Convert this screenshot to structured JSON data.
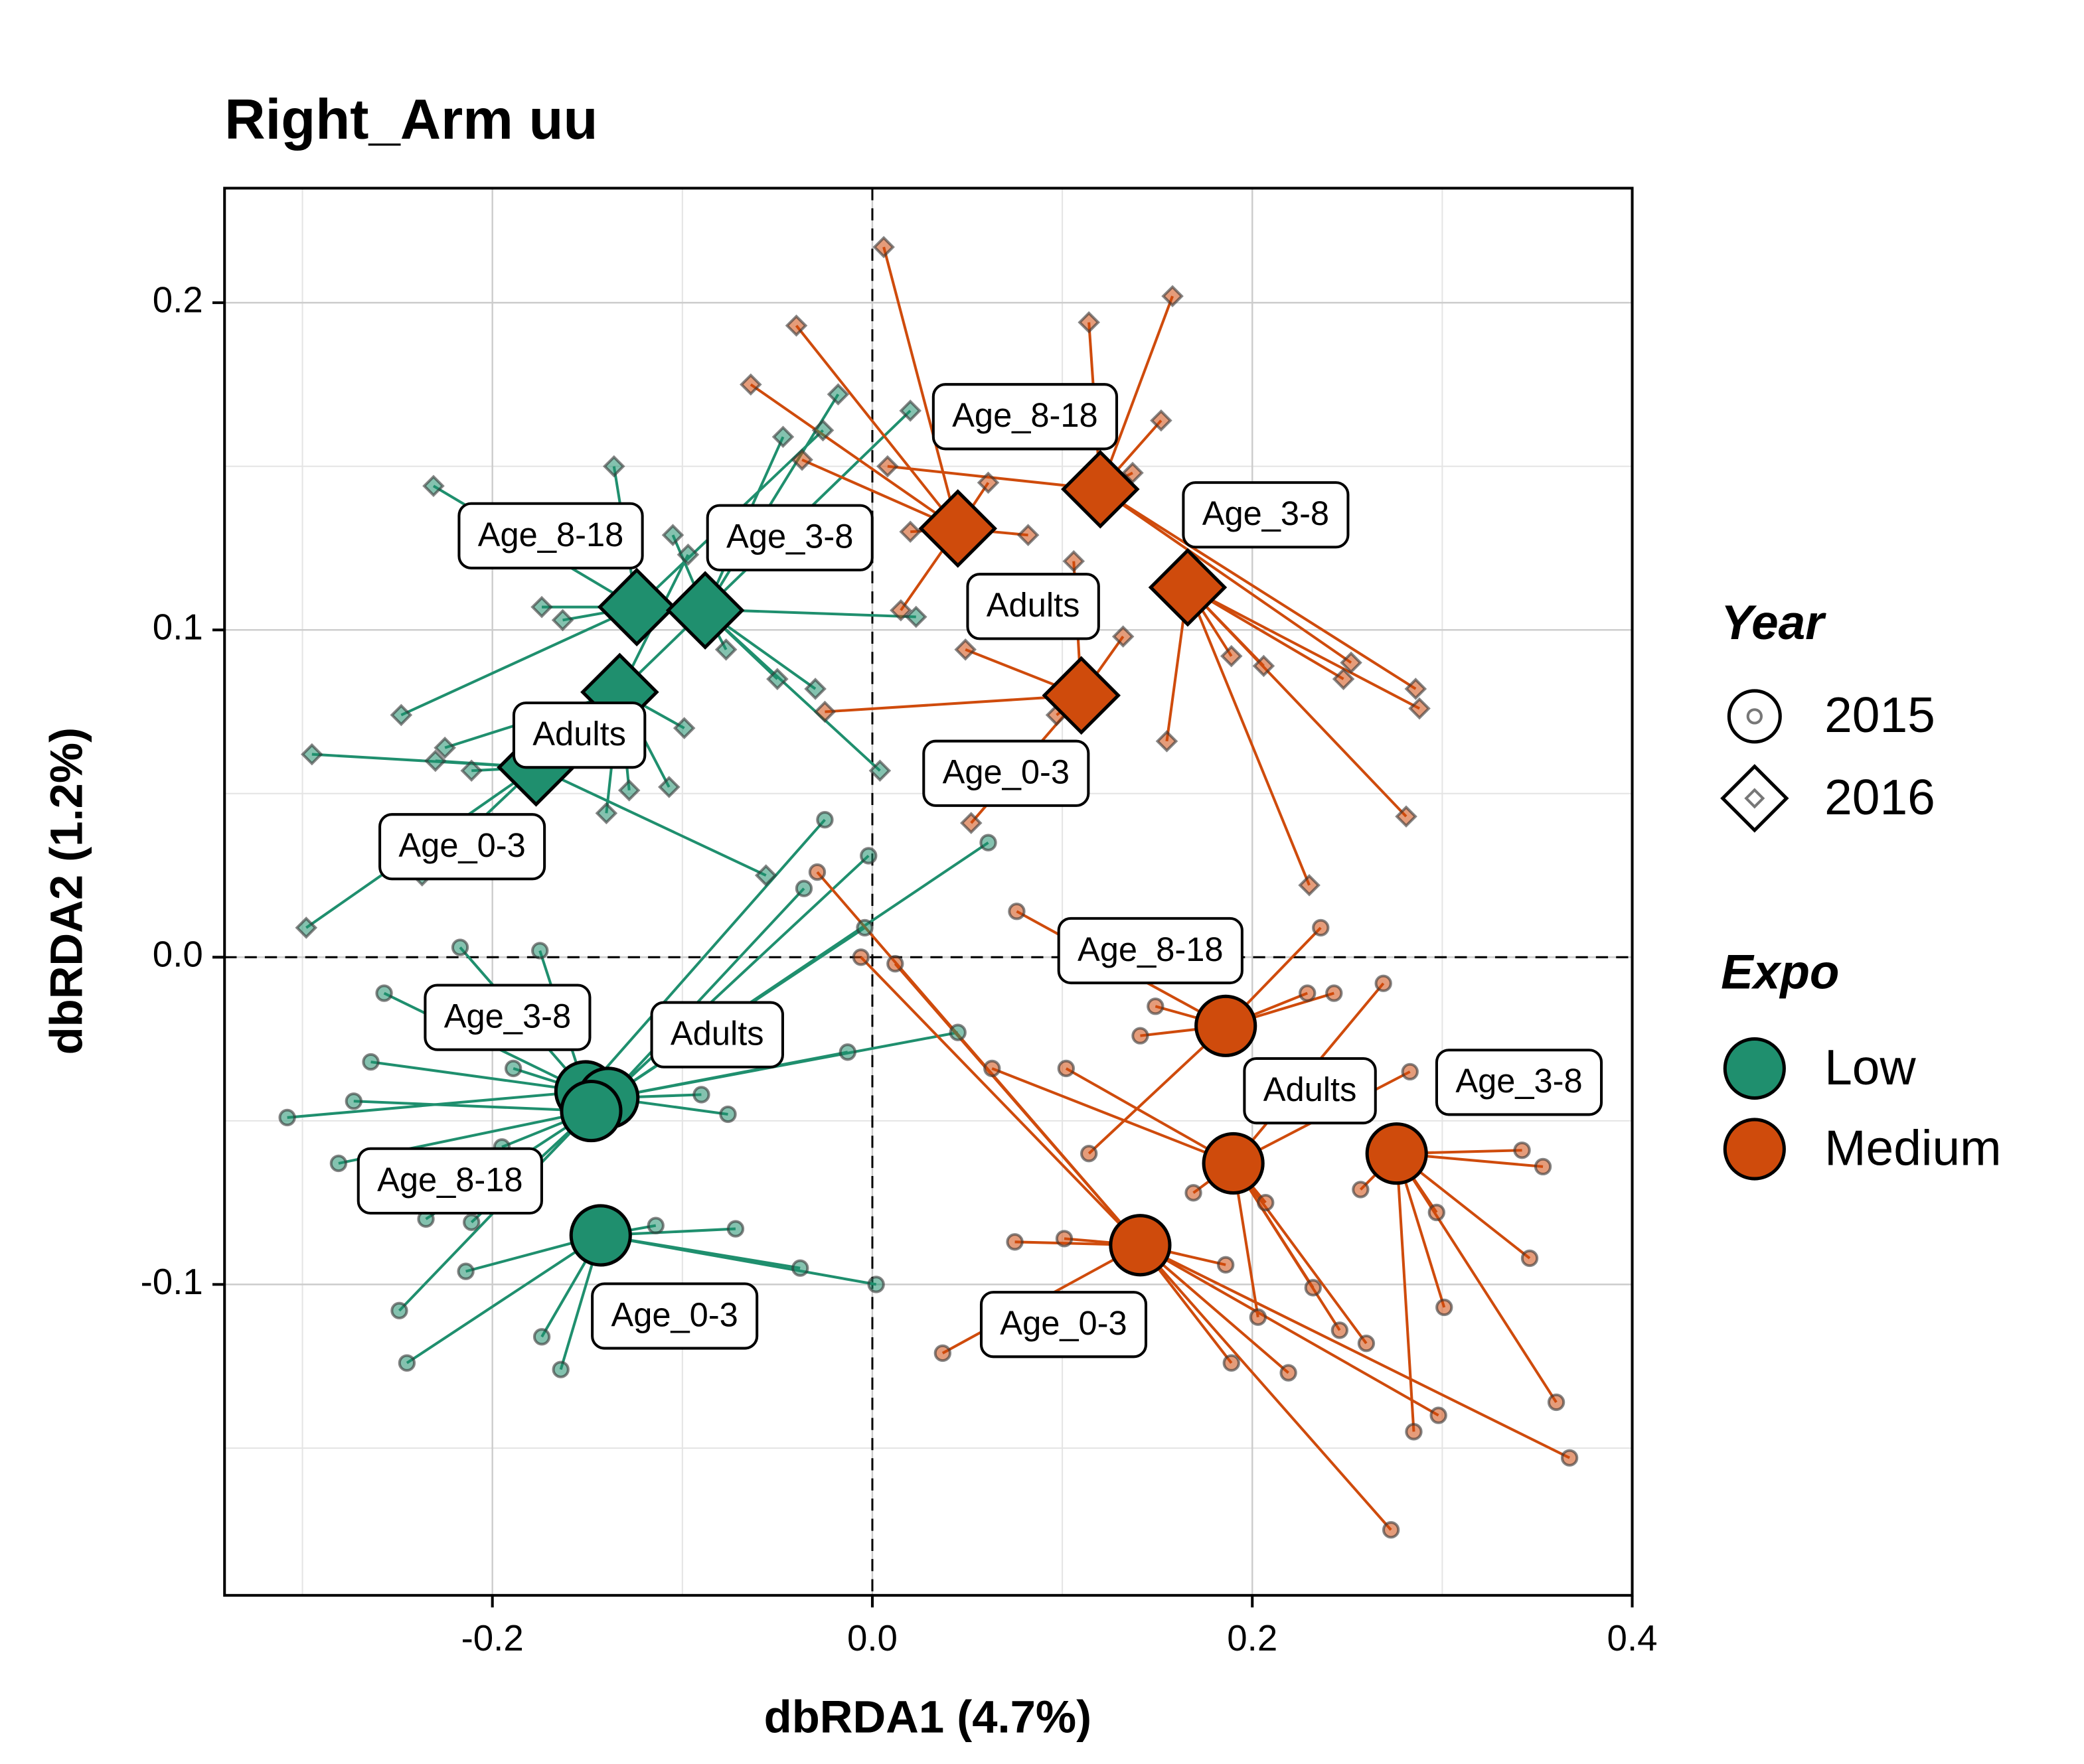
{
  "chart_data": {
    "type": "scatter",
    "title": "Right_Arm uu",
    "xlabel": "dbRDA1 (4.7%)",
    "ylabel": "dbRDA2 (1.2%)",
    "xlim": [
      -0.341,
      0.4
    ],
    "ylim": [
      -0.195,
      0.235
    ],
    "xticks": [
      -0.2,
      {
        "value": 0,
        "label": "0.0"
      },
      0.2,
      0.4
    ],
    "yticks": [
      -0.1,
      {
        "value": 0,
        "label": "0.0"
      },
      0.1,
      0.2
    ],
    "grid": true,
    "legend_year": {
      "title": "Year",
      "values": [
        "2015",
        "2016"
      ],
      "shapes": [
        "circle",
        "diamond"
      ]
    },
    "legend_expo": {
      "title": "Expo",
      "values": [
        "Low",
        "Medium"
      ],
      "colors": [
        "#1f8f6e",
        "#cf4b0c"
      ]
    },
    "groups": [
      {
        "label": "Age_8-18",
        "expo": "Low",
        "year": "2016",
        "cx": -0.124,
        "cy": 0.107,
        "x": [
          -0.231,
          -0.136,
          -0.174,
          -0.163,
          -0.248,
          -0.026,
          0.023
        ],
        "y": [
          0.144,
          0.15,
          0.107,
          0.103,
          0.074,
          0.161,
          0.104
        ]
      },
      {
        "label": "Age_3-8",
        "expo": "Low",
        "year": "2016",
        "cx": -0.088,
        "cy": 0.106,
        "x": [
          -0.018,
          -0.047,
          -0.05,
          -0.03,
          0.004,
          -0.105,
          -0.077
        ],
        "y": [
          0.172,
          0.159,
          0.085,
          0.082,
          0.057,
          0.129,
          0.094
        ]
      },
      {
        "label": "Adults",
        "expo": "Low",
        "year": "2016",
        "cx": -0.133,
        "cy": 0.081,
        "x": [
          -0.099,
          -0.14,
          -0.107,
          -0.128,
          -0.097,
          0.02,
          -0.225
        ],
        "y": [
          0.07,
          0.044,
          0.052,
          0.051,
          0.123,
          0.167,
          0.064
        ]
      },
      {
        "label": "Age_0-3",
        "expo": "Low",
        "year": "2016",
        "cx": -0.177,
        "cy": 0.058,
        "x": [
          -0.295,
          -0.298,
          -0.237,
          -0.211,
          -0.056,
          -0.23
        ],
        "y": [
          0.062,
          0.009,
          0.025,
          0.057,
          0.025,
          0.06
        ]
      },
      {
        "label": "Age_8-18",
        "expo": "Medium",
        "year": "2016",
        "cx": 0.12,
        "cy": 0.143,
        "x": [
          0.114,
          0.158,
          0.152,
          0.008,
          0.252,
          0.286,
          0.137
        ],
        "y": [
          0.194,
          0.202,
          0.164,
          0.15,
          0.09,
          0.082,
          0.148
        ]
      },
      {
        "label": "Age_3-8",
        "expo": "Medium",
        "year": "2016",
        "cx": 0.166,
        "cy": 0.113,
        "x": [
          0.281,
          0.288,
          0.206,
          0.189,
          0.248,
          0.155,
          0.23
        ],
        "y": [
          0.043,
          0.076,
          0.089,
          0.092,
          0.085,
          0.066,
          0.022
        ]
      },
      {
        "label": "Adults",
        "expo": "Medium",
        "year": "2016",
        "cx": 0.045,
        "cy": 0.131,
        "x": [
          0.006,
          -0.04,
          -0.064,
          -0.037,
          0.02,
          0.082,
          0.061,
          0.015
        ],
        "y": [
          0.217,
          0.193,
          0.175,
          0.152,
          0.13,
          0.129,
          0.145,
          0.106
        ]
      },
      {
        "label": "Age_0-3",
        "expo": "Medium",
        "year": "2016",
        "cx": 0.11,
        "cy": 0.08,
        "x": [
          0.052,
          0.049,
          -0.025,
          0.106,
          0.132,
          0.097
        ],
        "y": [
          0.041,
          0.094,
          0.075,
          0.121,
          0.098,
          0.074
        ]
      },
      {
        "label": "Age_3-8",
        "expo": "Low",
        "year": "2015",
        "cx": -0.151,
        "cy": -0.041,
        "x": [
          -0.308,
          -0.257,
          -0.264,
          -0.217,
          -0.025,
          -0.175,
          -0.189
        ],
        "y": [
          -0.049,
          -0.011,
          -0.032,
          0.003,
          0.042,
          0.002,
          -0.034
        ]
      },
      {
        "label": "Adults",
        "expo": "Low",
        "year": "2015",
        "cx": -0.139,
        "cy": -0.043,
        "x": [
          0.061,
          0.045,
          -0.013,
          -0.076,
          -0.002,
          -0.036,
          -0.004,
          -0.09
        ],
        "y": [
          0.035,
          -0.023,
          -0.029,
          -0.048,
          0.031,
          0.021,
          0.009,
          -0.042
        ]
      },
      {
        "label": "Age_8-18",
        "expo": "Low",
        "year": "2015",
        "cx": -0.148,
        "cy": -0.047,
        "x": [
          -0.281,
          -0.235,
          -0.211,
          -0.249,
          -0.273,
          -0.195
        ],
        "y": [
          -0.063,
          -0.08,
          -0.081,
          -0.108,
          -0.044,
          -0.058
        ]
      },
      {
        "label": "Age_0-3",
        "expo": "Low",
        "year": "2015",
        "cx": -0.143,
        "cy": -0.085,
        "x": [
          -0.245,
          -0.174,
          -0.164,
          0.002,
          -0.038,
          -0.072,
          -0.114,
          -0.214
        ],
        "y": [
          -0.124,
          -0.116,
          -0.126,
          -0.1,
          -0.095,
          -0.083,
          -0.082,
          -0.096
        ]
      },
      {
        "label": "Age_8-18",
        "expo": "Medium",
        "year": "2015",
        "cx": 0.186,
        "cy": -0.021,
        "x": [
          0.236,
          0.076,
          0.229,
          0.243,
          0.141,
          0.114,
          0.149
        ],
        "y": [
          0.009,
          0.014,
          -0.011,
          -0.011,
          -0.024,
          -0.06,
          -0.015
        ]
      },
      {
        "label": "Adults",
        "expo": "Medium",
        "year": "2015",
        "cx": 0.19,
        "cy": -0.063,
        "x": [
          0.283,
          0.169,
          0.207,
          0.269,
          0.26,
          0.203,
          0.232,
          0.246,
          0.063,
          0.102
        ],
        "y": [
          -0.035,
          -0.072,
          -0.075,
          -0.008,
          -0.118,
          -0.11,
          -0.101,
          -0.114,
          -0.034,
          -0.034
        ]
      },
      {
        "label": "Age_3-8",
        "expo": "Medium",
        "year": "2015",
        "cx": 0.276,
        "cy": -0.06,
        "x": [
          0.342,
          0.353,
          0.297,
          0.346,
          0.301,
          0.36,
          0.285,
          0.257
        ],
        "y": [
          -0.059,
          -0.064,
          -0.078,
          -0.092,
          -0.107,
          -0.136,
          -0.145,
          -0.071
        ]
      },
      {
        "label": "Age_0-3",
        "expo": "Medium",
        "year": "2015",
        "cx": 0.141,
        "cy": -0.088,
        "x": [
          0.037,
          0.367,
          0.273,
          0.298,
          0.189,
          0.219,
          0.075,
          -0.006,
          0.012,
          -0.029,
          0.101,
          0.186
        ],
        "y": [
          -0.121,
          -0.153,
          -0.175,
          -0.14,
          -0.124,
          -0.127,
          -0.087,
          0.0,
          -0.002,
          0.026,
          -0.086,
          -0.094
        ]
      }
    ]
  }
}
